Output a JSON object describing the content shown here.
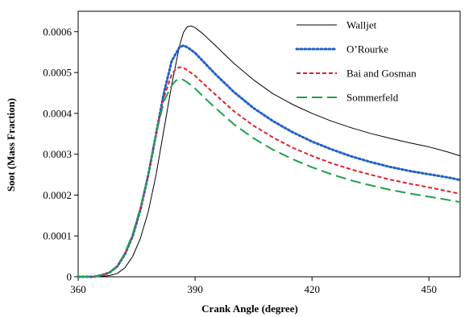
{
  "chart_data": {
    "type": "line",
    "title": "",
    "xlabel": "Crank Angle (degree)",
    "ylabel": "Soot (Mass Fraction)",
    "xlim": [
      360,
      458
    ],
    "ylim": [
      0,
      0.00065
    ],
    "xticks": [
      360,
      390,
      420,
      450
    ],
    "xtick_labels": [
      "360",
      "390",
      "420",
      "450"
    ],
    "yticks": [
      0,
      0.0001,
      0.0002,
      0.0003,
      0.0004,
      0.0005,
      0.0006
    ],
    "ytick_labels": [
      "0",
      "0.0001",
      "0.0002",
      "0.0003",
      "0.0004",
      "0.0005",
      "0.0006"
    ],
    "grid": false,
    "legend_position": "top-right",
    "series": [
      {
        "name": "Walljet",
        "color": "#000000",
        "style": "solid",
        "x": [
          360,
          365,
          368,
          370,
          372,
          374,
          376,
          378,
          380,
          382,
          384,
          386,
          387,
          388,
          389,
          390,
          392,
          395,
          400,
          405,
          410,
          415,
          420,
          425,
          430,
          435,
          440,
          445,
          450,
          455,
          458
        ],
        "y": [
          0,
          0,
          3e-06,
          8e-06,
          2.2e-05,
          5e-05,
          9.5e-05,
          0.00016,
          0.00025,
          0.00036,
          0.00047,
          0.000565,
          0.000598,
          0.000612,
          0.000614,
          0.00061,
          0.000595,
          0.000568,
          0.000522,
          0.000482,
          0.000448,
          0.000422,
          0.0004,
          0.000381,
          0.000365,
          0.000351,
          0.000339,
          0.000328,
          0.000318,
          0.000305,
          0.000296
        ]
      },
      {
        "name": "O’Rourke",
        "color": "#1f5fc8",
        "style": "dotted",
        "x": [
          360,
          364,
          366,
          368,
          370,
          372,
          374,
          376,
          378,
          380,
          382,
          384,
          386,
          387,
          388,
          390,
          392,
          395,
          400,
          405,
          410,
          415,
          420,
          425,
          430,
          435,
          440,
          445,
          450,
          455,
          458
        ],
        "y": [
          0,
          0,
          4e-06,
          1e-05,
          2.5e-05,
          5.5e-05,
          0.0001,
          0.000165,
          0.00025,
          0.00035,
          0.00045,
          0.000528,
          0.000562,
          0.000566,
          0.000562,
          0.000548,
          0.000528,
          0.000498,
          0.000452,
          0.000413,
          0.000381,
          0.000354,
          0.000331,
          0.000312,
          0.000295,
          0.000281,
          0.000269,
          0.000259,
          0.000251,
          0.000243,
          0.000237
        ]
      },
      {
        "name": "Bai and Gosman",
        "color": "#e0202a",
        "style": "dashed",
        "x": [
          360,
          364,
          366,
          368,
          370,
          372,
          374,
          376,
          378,
          380,
          382,
          384,
          385,
          386,
          387,
          388,
          390,
          392,
          395,
          400,
          405,
          410,
          415,
          420,
          425,
          430,
          435,
          440,
          445,
          450,
          455,
          458
        ],
        "y": [
          0,
          0,
          4e-06,
          1e-05,
          2.5e-05,
          5.6e-05,
          0.000102,
          0.000168,
          0.00025,
          0.00035,
          0.00044,
          0.000495,
          0.000508,
          0.000513,
          0.000512,
          0.000506,
          0.000492,
          0.000474,
          0.000448,
          0.000405,
          0.00037,
          0.000341,
          0.000316,
          0.000296,
          0.000278,
          0.000263,
          0.00025,
          0.000238,
          0.000228,
          0.000219,
          0.000209,
          0.000203
        ]
      },
      {
        "name": "Sommerfeld",
        "color": "#1ea04a",
        "style": "longdash",
        "x": [
          360,
          364,
          366,
          368,
          370,
          372,
          374,
          376,
          378,
          380,
          382,
          384,
          385,
          386,
          387,
          388,
          390,
          392,
          395,
          400,
          405,
          410,
          415,
          420,
          425,
          430,
          435,
          440,
          445,
          450,
          455,
          458
        ],
        "y": [
          0,
          0,
          4e-06,
          1e-05,
          2.6e-05,
          5.8e-05,
          0.000105,
          0.00017,
          0.00025,
          0.00035,
          0.00043,
          0.000468,
          0.00048,
          0.000484,
          0.000482,
          0.000476,
          0.000461,
          0.000442,
          0.000415,
          0.000373,
          0.000339,
          0.000311,
          0.000288,
          0.000268,
          0.000251,
          0.000236,
          0.000224,
          0.000213,
          0.000204,
          0.000196,
          0.000188,
          0.000183
        ]
      }
    ]
  }
}
